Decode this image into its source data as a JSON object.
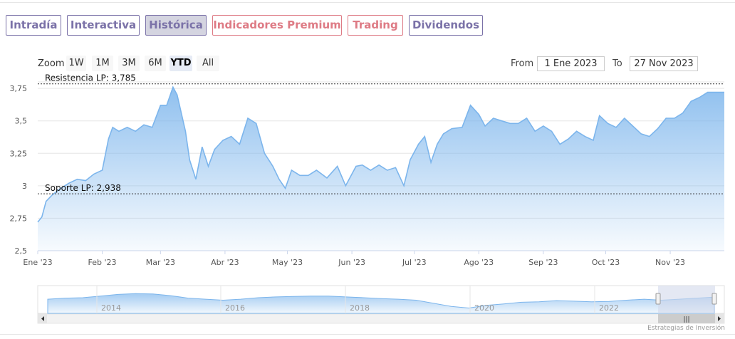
{
  "tabs": [
    {
      "label": "Intradía",
      "style": "normal"
    },
    {
      "label": "Interactiva",
      "style": "normal"
    },
    {
      "label": "Histórica",
      "style": "active"
    },
    {
      "label": "Indicadores Premium",
      "style": "premium"
    },
    {
      "label": "Trading",
      "style": "premium"
    },
    {
      "label": "Dividendos",
      "style": "normal"
    }
  ],
  "range_selector": {
    "zoom_label": "Zoom",
    "buttons": [
      "1W",
      "1M",
      "3M",
      "6M",
      "YTD",
      "All"
    ],
    "selected": "YTD",
    "from_label": "From",
    "from_value": "1 Ene 2023",
    "to_label": "To",
    "to_value": "27 Nov 2023"
  },
  "credit": "Estrategias de Inversión",
  "colors": {
    "tab_normal": "#7b72a8",
    "tab_premium": "#de7b85",
    "series": "#7cb5ec",
    "level_line": "#333333",
    "nav_mask": "#d2d9eb"
  },
  "chart_data": {
    "type": "area",
    "title": "",
    "xlabel": "",
    "ylabel": "",
    "ylim": [
      2.5,
      3.8
    ],
    "y_ticks": [
      "2,5",
      "2,75",
      "3",
      "3,25",
      "3,5",
      "3,75"
    ],
    "x_tick_labels": [
      "Ene '23",
      "Feb '23",
      "Mar '23",
      "Abr '23",
      "May '23",
      "Jun '23",
      "Jul '23",
      "Ago '23",
      "Sep '23",
      "Oct '23",
      "Nov '23"
    ],
    "grid": true,
    "legend": "none",
    "levels": [
      {
        "label": "Resistencia LP: 3,785",
        "value": 3.785
      },
      {
        "label": "Soporte LP: 2,938",
        "value": 2.938
      }
    ],
    "x": [
      "2023-01-01",
      "2023-01-03",
      "2023-01-05",
      "2023-01-08",
      "2023-01-12",
      "2023-01-16",
      "2023-01-20",
      "2023-01-24",
      "2023-01-28",
      "2023-02-01",
      "2023-02-04",
      "2023-02-06",
      "2023-02-09",
      "2023-02-13",
      "2023-02-17",
      "2023-02-21",
      "2023-02-25",
      "2023-03-01",
      "2023-03-04",
      "2023-03-07",
      "2023-03-09",
      "2023-03-13",
      "2023-03-15",
      "2023-03-18",
      "2023-03-21",
      "2023-03-24",
      "2023-03-27",
      "2023-03-31",
      "2023-04-04",
      "2023-04-08",
      "2023-04-12",
      "2023-04-16",
      "2023-04-20",
      "2023-04-24",
      "2023-04-27",
      "2023-04-30",
      "2023-05-03",
      "2023-05-07",
      "2023-05-11",
      "2023-05-15",
      "2023-05-20",
      "2023-05-25",
      "2023-05-29",
      "2023-06-03",
      "2023-06-06",
      "2023-06-10",
      "2023-06-14",
      "2023-06-18",
      "2023-06-22",
      "2023-06-26",
      "2023-06-29",
      "2023-07-03",
      "2023-07-06",
      "2023-07-09",
      "2023-07-12",
      "2023-07-15",
      "2023-07-19",
      "2023-07-24",
      "2023-07-28",
      "2023-08-01",
      "2023-08-04",
      "2023-08-08",
      "2023-08-12",
      "2023-08-16",
      "2023-08-20",
      "2023-08-24",
      "2023-08-28",
      "2023-09-01",
      "2023-09-05",
      "2023-09-09",
      "2023-09-13",
      "2023-09-17",
      "2023-09-21",
      "2023-09-25",
      "2023-09-28",
      "2023-10-02",
      "2023-10-06",
      "2023-10-10",
      "2023-10-14",
      "2023-10-18",
      "2023-10-22",
      "2023-10-26",
      "2023-10-30",
      "2023-11-03",
      "2023-11-07",
      "2023-11-11",
      "2023-11-15",
      "2023-11-19",
      "2023-11-23",
      "2023-11-27"
    ],
    "series": [
      {
        "values": [
          2.72,
          2.76,
          2.88,
          2.93,
          2.98,
          3.02,
          3.05,
          3.04,
          3.09,
          3.12,
          3.36,
          3.45,
          3.42,
          3.45,
          3.42,
          3.47,
          3.45,
          3.62,
          3.62,
          3.76,
          3.7,
          3.42,
          3.2,
          3.05,
          3.3,
          3.15,
          3.28,
          3.35,
          3.38,
          3.32,
          3.52,
          3.48,
          3.25,
          3.15,
          3.05,
          2.98,
          3.12,
          3.08,
          3.08,
          3.12,
          3.06,
          3.15,
          3.0,
          3.15,
          3.16,
          3.12,
          3.16,
          3.12,
          3.14,
          3.0,
          3.2,
          3.32,
          3.38,
          3.18,
          3.32,
          3.4,
          3.44,
          3.45,
          3.62,
          3.55,
          3.46,
          3.52,
          3.5,
          3.48,
          3.48,
          3.52,
          3.42,
          3.46,
          3.42,
          3.32,
          3.36,
          3.42,
          3.38,
          3.35,
          3.54,
          3.48,
          3.45,
          3.52,
          3.46,
          3.4,
          3.38,
          3.44,
          3.52,
          3.52,
          3.56,
          3.65,
          3.68,
          3.72,
          3.72,
          3.72
        ]
      }
    ],
    "navigator": {
      "x_tick_labels": [
        "2014",
        "2016",
        "2018",
        "2020",
        "2022"
      ]
    }
  }
}
